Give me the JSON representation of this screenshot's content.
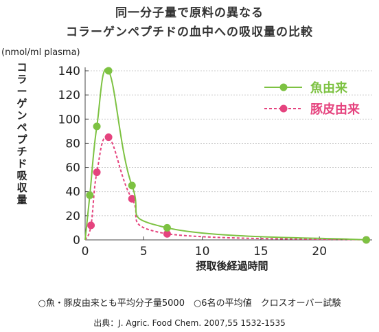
{
  "header": {
    "title_line1": "同一分子量で原料の異なる",
    "title_line2": "コラーゲンペプチドの血中への吸収量の比較"
  },
  "chart_data": {
    "type": "line",
    "unit_label": "(nmol/ml plasma)",
    "ylabel": "コラーゲンペプチド吸収量",
    "xlabel": "摂取後経過時間",
    "xlim": [
      0,
      24.5
    ],
    "ylim": [
      0,
      140
    ],
    "xticks": [
      0,
      5,
      10,
      15,
      20
    ],
    "yticks": [
      0,
      20,
      40,
      60,
      80,
      100,
      120,
      140
    ],
    "grid": "dashed-horizontal",
    "legend_position": "top-right",
    "series": [
      {
        "name": "魚由来",
        "color": "#7dc242",
        "line_style": "solid",
        "points": [
          [
            0,
            0
          ],
          [
            0.4,
            37
          ],
          [
            1,
            94
          ],
          [
            2,
            140
          ],
          [
            4,
            45
          ],
          [
            7,
            10
          ],
          [
            24,
            0
          ]
        ]
      },
      {
        "name": "豚皮由来",
        "color": "#e5437e",
        "line_style": "dashed",
        "points": [
          [
            0,
            0
          ],
          [
            0.5,
            12
          ],
          [
            1,
            56
          ],
          [
            2,
            85
          ],
          [
            4,
            34
          ],
          [
            7,
            5
          ],
          [
            24,
            0
          ]
        ]
      }
    ]
  },
  "footer": {
    "note": "○魚・豚皮由来とも平均分子量5000　○6名の平均値　クロスオーバー試験",
    "source": "出典：J. Agric. Food Chem. 2007,55 1532-1535"
  }
}
